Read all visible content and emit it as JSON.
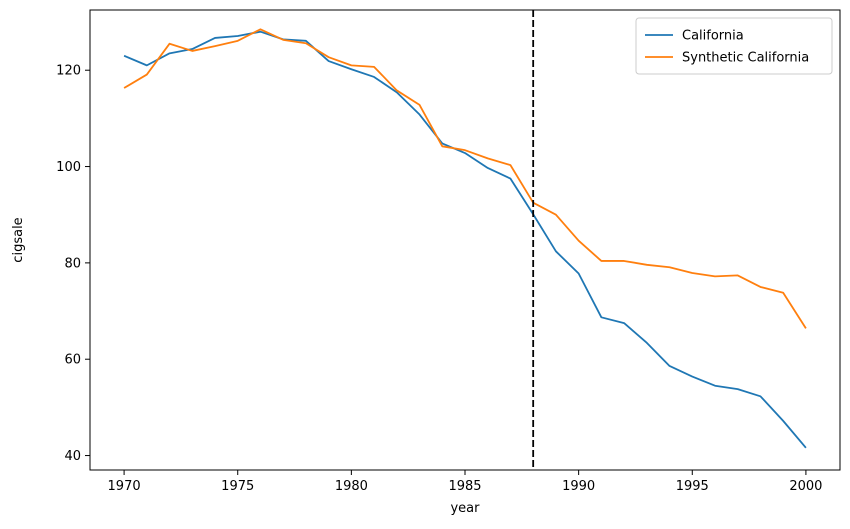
{
  "chart_data": {
    "type": "line",
    "title": "",
    "xlabel": "year",
    "ylabel": "cigsale",
    "xlim": [
      1968.5,
      2001.5
    ],
    "ylim": [
      37,
      132.5
    ],
    "xticks": [
      1970,
      1975,
      1980,
      1985,
      1990,
      1995,
      2000
    ],
    "yticks": [
      40,
      60,
      80,
      100,
      120
    ],
    "grid": false,
    "legend": {
      "placement": "top-right"
    },
    "x": [
      1970,
      1971,
      1972,
      1973,
      1974,
      1975,
      1976,
      1977,
      1978,
      1979,
      1980,
      1981,
      1982,
      1983,
      1984,
      1985,
      1986,
      1987,
      1988,
      1989,
      1990,
      1991,
      1992,
      1993,
      1994,
      1995,
      1996,
      1997,
      1998,
      1999,
      2000
    ],
    "series": [
      {
        "name": "California",
        "color": "#1f77b4",
        "values": [
          123.0,
          121.0,
          123.5,
          124.4,
          126.7,
          127.1,
          128.0,
          126.4,
          126.1,
          121.9,
          120.2,
          118.6,
          115.4,
          110.8,
          104.8,
          102.8,
          99.7,
          97.5,
          90.1,
          82.4,
          77.8,
          68.7,
          67.5,
          63.4,
          58.6,
          56.4,
          54.5,
          53.8,
          52.3,
          47.2,
          41.6
        ]
      },
      {
        "name": "Synthetic California",
        "color": "#ff7f0e",
        "values": [
          116.3,
          119.1,
          125.5,
          124.0,
          125.0,
          126.1,
          128.5,
          126.3,
          125.6,
          122.7,
          121.0,
          120.7,
          115.8,
          112.8,
          104.2,
          103.4,
          101.7,
          100.3,
          92.5,
          90.0,
          84.6,
          80.4,
          80.4,
          79.6,
          79.1,
          77.9,
          77.2,
          77.4,
          75.0,
          73.8,
          66.4
        ]
      }
    ],
    "annotations": [
      {
        "type": "vline",
        "x": 1988,
        "style": "dashed",
        "color": "#000000"
      }
    ]
  }
}
